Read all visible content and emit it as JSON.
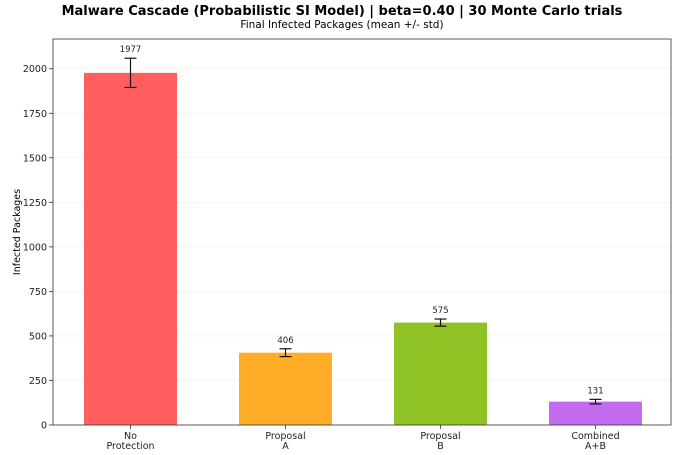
{
  "chart_data": {
    "type": "bar",
    "title": "Malware Cascade (Probabilistic SI Model)  |  beta=0.40  |  30 Monte Carlo trials",
    "subtitle": "Final Infected Packages (mean +/- std)",
    "xlabel": "",
    "ylabel": "Infected Packages",
    "categories": [
      [
        "No",
        "Protection"
      ],
      [
        "Proposal",
        "A"
      ],
      [
        "Proposal",
        "B"
      ],
      [
        "Combined",
        "A+B"
      ]
    ],
    "values": [
      1977,
      406,
      575,
      131
    ],
    "errors": [
      82,
      22,
      20,
      13
    ],
    "value_labels": [
      "1977",
      "406",
      "575",
      "131"
    ],
    "colors": [
      "#ff5e5e",
      "#ffad26",
      "#8fc224",
      "#c46cf0"
    ],
    "yticks": [
      0,
      250,
      500,
      750,
      1000,
      1250,
      1500,
      1750,
      2000
    ],
    "ylim": [
      0,
      2167
    ],
    "grid": "horizontal"
  }
}
